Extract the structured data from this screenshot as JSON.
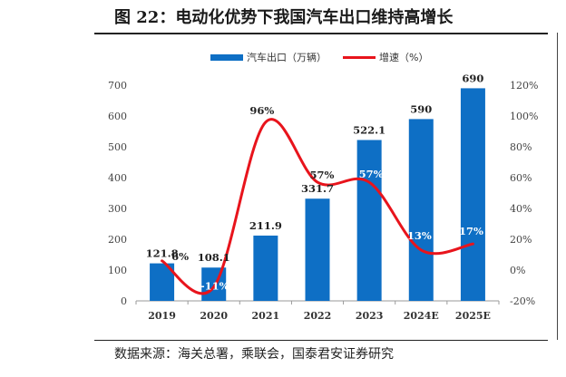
{
  "header": {
    "title": "图 22：电动化优势下我国汽车出口维持高增长"
  },
  "footer": {
    "source": "数据来源：海关总署，乘联会，国泰君安证券研究"
  },
  "colors": {
    "bar": "#0E6FC5",
    "line": "#E8141C",
    "axis": "#9a9a9a"
  },
  "chart_data": {
    "type": "bar",
    "categories": [
      "2019",
      "2020",
      "2021",
      "2022",
      "2023",
      "2024E",
      "2025E"
    ],
    "series": [
      {
        "name": "汽车出口（万辆）",
        "type": "bar",
        "axis": "left",
        "values": [
          121.8,
          108.1,
          211.9,
          331.7,
          522.1,
          590,
          690
        ],
        "labels": [
          "121.8",
          "108.1",
          "211.9",
          "331.7",
          "522.1",
          "590",
          "690"
        ]
      },
      {
        "name": "增速（%）",
        "type": "line",
        "axis": "right",
        "values": [
          6,
          -11,
          96,
          57,
          57,
          13,
          17
        ],
        "labels": [
          "6%",
          "-11%",
          "96%",
          "57%",
          "57%",
          "13%",
          "17%"
        ]
      }
    ],
    "y_left": {
      "min": 0,
      "max": 700,
      "ticks": [
        0,
        100,
        200,
        300,
        400,
        500,
        600,
        700
      ],
      "tick_labels": [
        "0",
        "100",
        "200",
        "300",
        "400",
        "500",
        "600",
        "700"
      ]
    },
    "y_right": {
      "min": -20,
      "max": 120,
      "ticks": [
        -20,
        0,
        20,
        40,
        60,
        80,
        100,
        120
      ],
      "tick_labels": [
        "-20%",
        "0%",
        "20%",
        "40%",
        "60%",
        "80%",
        "100%",
        "120%"
      ]
    },
    "legend": "top-center",
    "grid": false
  }
}
